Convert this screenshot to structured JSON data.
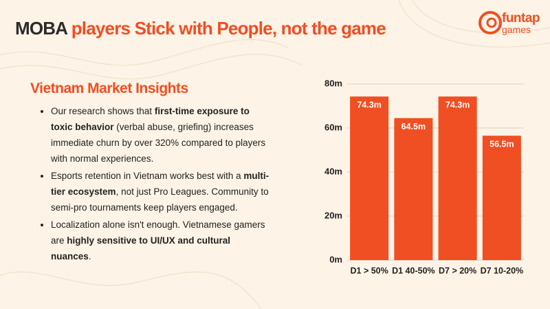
{
  "header": {
    "title_dark": "MOBA",
    "title_accent": "players Stick with People, not the game",
    "logo_top": "funtap",
    "logo_bottom": "games"
  },
  "insights": {
    "heading": "Vietnam Market Insights",
    "bullets": [
      [
        {
          "text": "Our research shows that ",
          "bold": false
        },
        {
          "text": "first-time exposure to toxic behavior",
          "bold": true
        },
        {
          "text": " (verbal abuse, griefing) increases immediate churn by over 320% compared to players with normal experiences.",
          "bold": false
        }
      ],
      [
        {
          "text": "Esports retention in Vietnam works best with a ",
          "bold": false
        },
        {
          "text": "multi-tier ecosystem",
          "bold": true
        },
        {
          "text": ", not just Pro Leagues. Community to semi-pro tournaments keep players engaged.",
          "bold": false
        }
      ],
      [
        {
          "text": "Localization alone isn't enough. Vietnamese gamers are ",
          "bold": false
        },
        {
          "text": "highly sensitive to UI/UX and cultural nuances",
          "bold": true
        },
        {
          "text": ".",
          "bold": false
        }
      ]
    ]
  },
  "chart_data": {
    "type": "bar",
    "categories": [
      "D1 > 50%",
      "D1 40-50%",
      "D7 > 20%",
      "D7 10-20%"
    ],
    "values": [
      74.3,
      64.5,
      74.3,
      56.5
    ],
    "value_labels": [
      "74.3m",
      "64.5m",
      "74.3m",
      "56.5m"
    ],
    "color": "#f04e23",
    "ylim": [
      0,
      80
    ],
    "yticks": [
      {
        "value": 0,
        "label": "0m"
      },
      {
        "value": 20,
        "label": "20m"
      },
      {
        "value": 40,
        "label": "40m"
      },
      {
        "value": 60,
        "label": "60m"
      },
      {
        "value": 80,
        "label": "80m"
      }
    ],
    "grid": true
  }
}
